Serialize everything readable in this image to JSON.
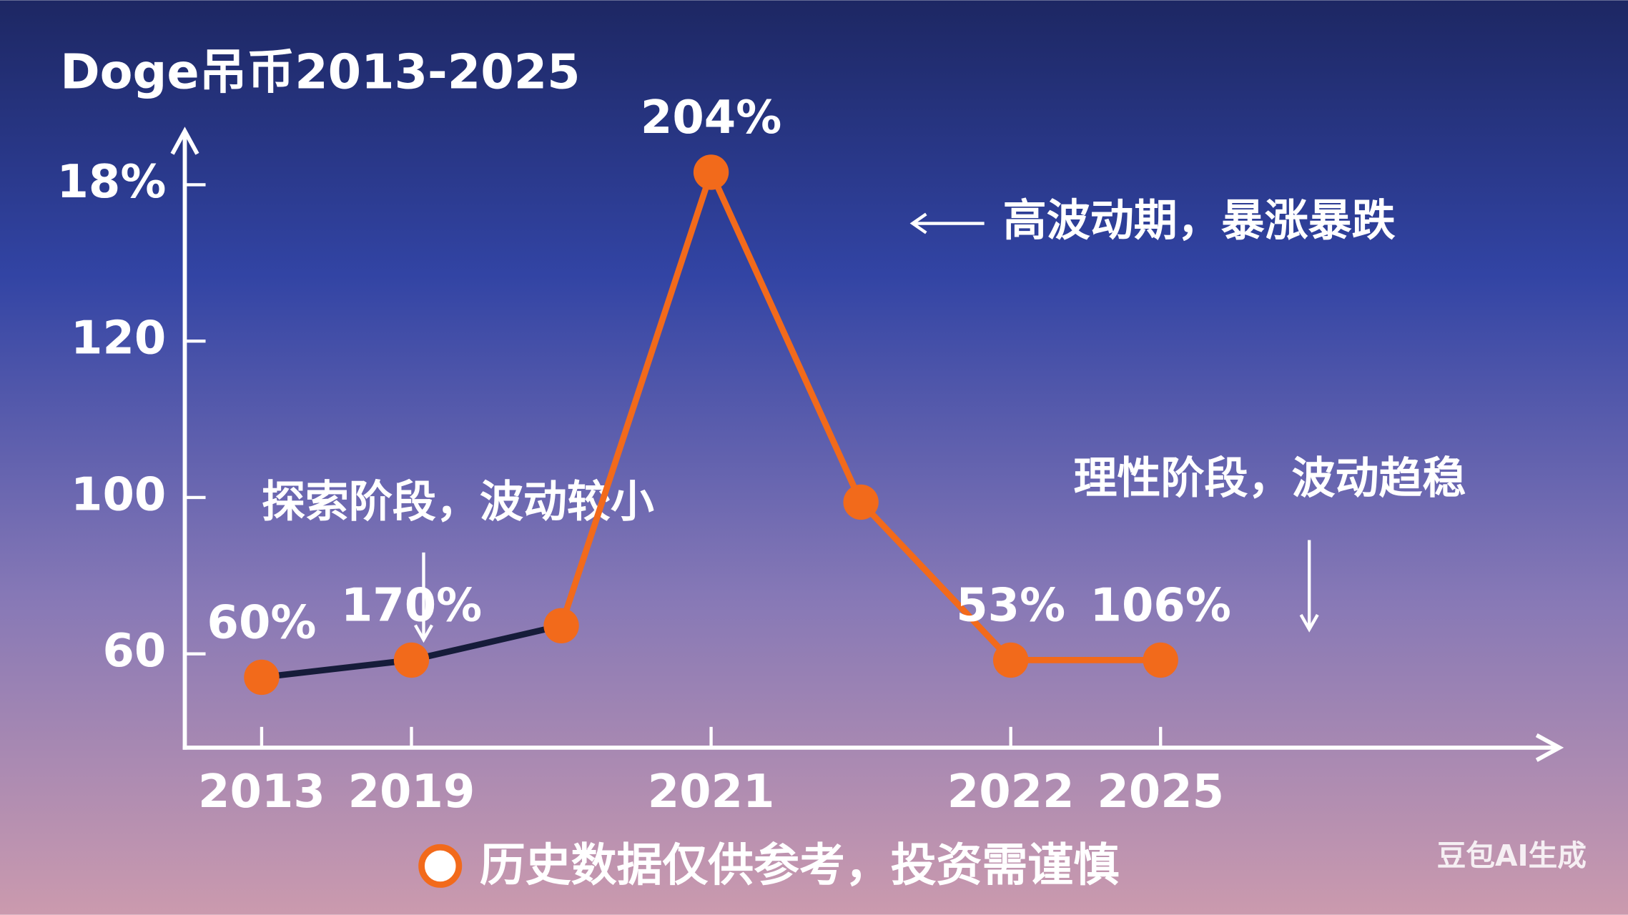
{
  "chart_data": {
    "type": "line",
    "title": "Doge吊币2013-2025",
    "categories": [
      "2013",
      "2019",
      null,
      "2021",
      null,
      "2022",
      "2025"
    ],
    "values": [
      -0.15,
      -0.04,
      0.18,
      3.08,
      0.97,
      -0.04,
      -0.04
    ],
    "point_labels": [
      "60%",
      "170%",
      null,
      "204%",
      null,
      "53%",
      "106%"
    ],
    "segment_colors": [
      "#161c3a",
      "#161c3a",
      "#f26a1b",
      "#f26a1b",
      "#f26a1b",
      "#f26a1b"
    ],
    "point_color": "#f26a1b",
    "ylim": [
      -0.6,
      3.35
    ],
    "yticks": [
      {
        "value": 0,
        "label": "60"
      },
      {
        "value": 1,
        "label": "100"
      },
      {
        "value": 2,
        "label": "120"
      },
      {
        "value": 3,
        "label": "18%"
      }
    ],
    "annotations": [
      "高波动期，暴涨暴跌",
      "探索阶段，波动较小",
      "理性阶段，波动趋稳"
    ],
    "footnote": "历史数据仅供参考，投资需谨慎",
    "watermark": "豆包AI生成"
  }
}
